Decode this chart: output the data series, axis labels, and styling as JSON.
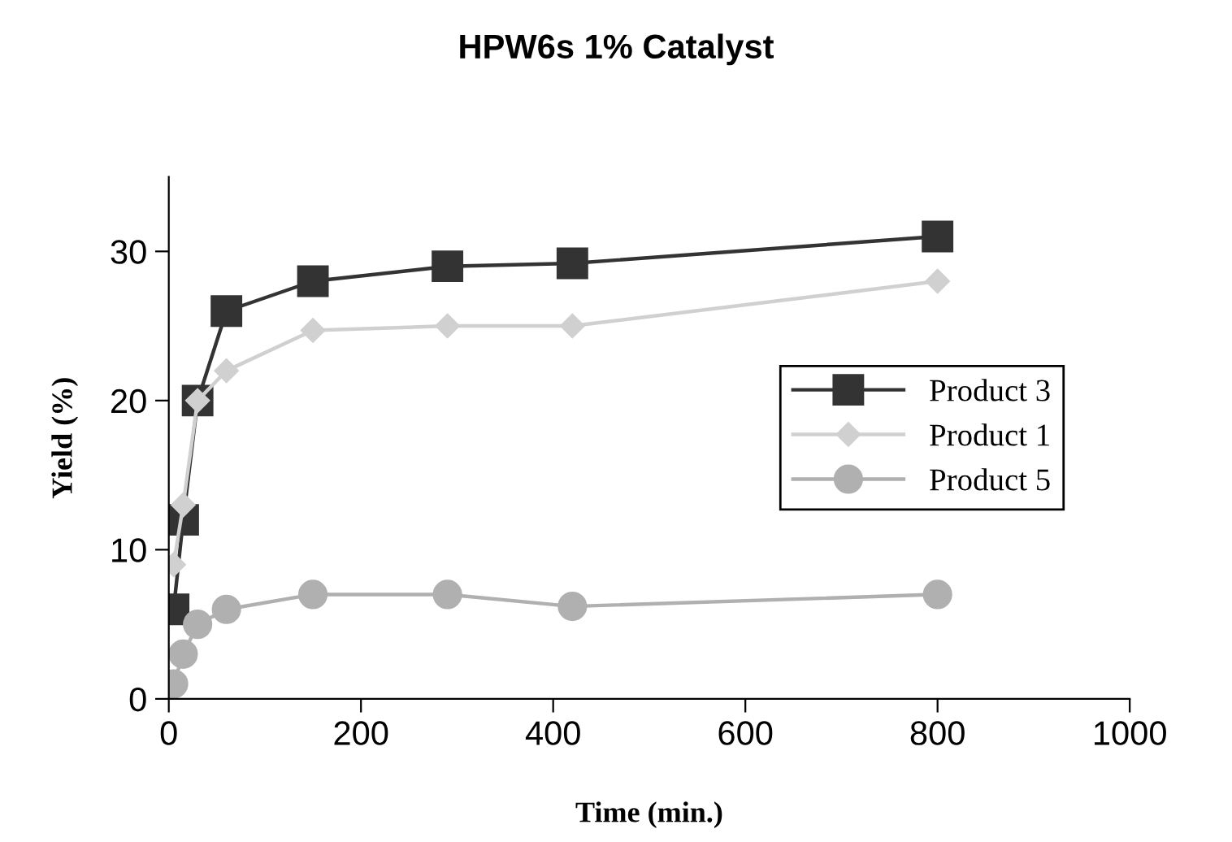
{
  "chart_data": {
    "type": "line",
    "title": "HPW6s 1% Catalyst",
    "xlabel": "Time (min.)",
    "ylabel": "Yield (%)",
    "x": [
      5,
      15,
      30,
      60,
      150,
      290,
      420,
      800
    ],
    "series": [
      {
        "name": "Product 3",
        "color": "#333333",
        "marker": "square",
        "values": [
          6,
          12,
          20,
          26,
          28,
          29,
          29.2,
          31
        ]
      },
      {
        "name": "Product 1",
        "color": "#d0d0d0",
        "marker": "diamond",
        "values": [
          9,
          13,
          20,
          22,
          24.7,
          25,
          25,
          28
        ]
      },
      {
        "name": "Product 5",
        "color": "#b0b0b0",
        "marker": "circle",
        "values": [
          1,
          3,
          5,
          6,
          7,
          7,
          6.2,
          7
        ]
      }
    ],
    "xlim": [
      0,
      1000
    ],
    "xticks": [
      0,
      200,
      400,
      600,
      800,
      1000
    ],
    "ylim": [
      0,
      35
    ],
    "yticks": [
      0,
      10,
      20,
      30
    ],
    "grid": false,
    "legend": "right",
    "line_style": "solid"
  }
}
